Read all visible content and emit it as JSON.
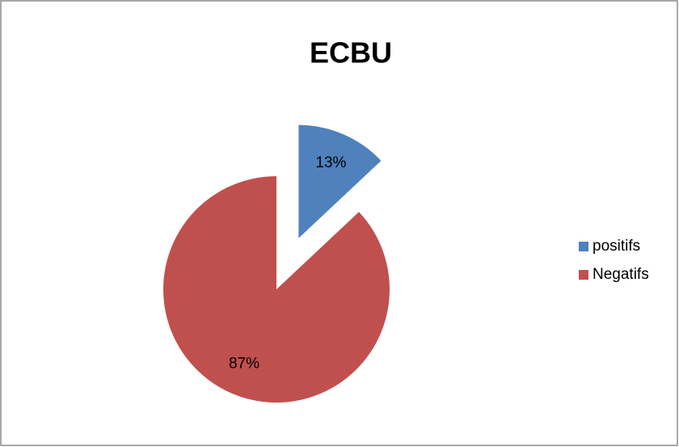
{
  "chart_data": {
    "type": "pie",
    "title": "ECBU",
    "categories": [
      "positifs",
      "Negatifs"
    ],
    "values": [
      13,
      87
    ],
    "value_labels": [
      "13%",
      "87%"
    ],
    "colors": [
      "#4f81bd",
      "#c0504d"
    ],
    "legend": "right"
  }
}
